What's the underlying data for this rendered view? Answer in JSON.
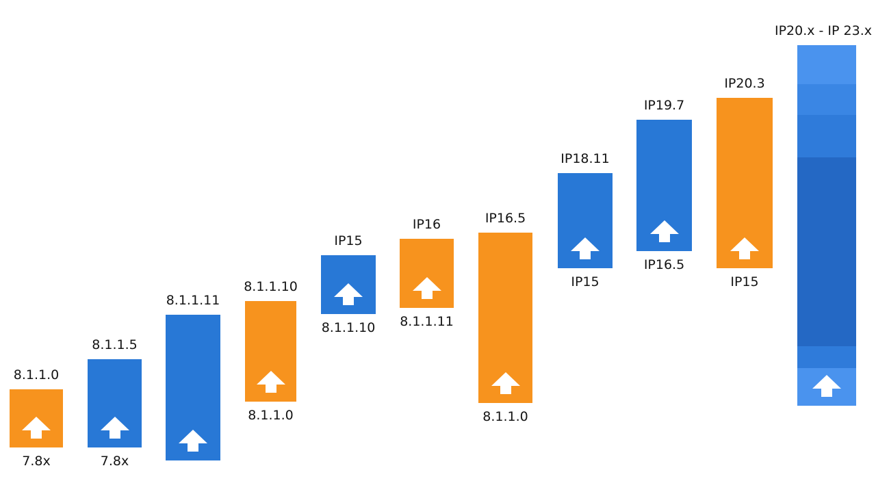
{
  "colors": {
    "blue": "#2878d6",
    "orange": "#f7931e",
    "arrow": "#ffffff",
    "text": "#141414"
  },
  "upgrades": [
    {
      "from": "7.8x",
      "to": "8.1.1.0",
      "color": "orange"
    },
    {
      "from": "7.8x",
      "to": "8.1.1.5",
      "color": "blue"
    },
    {
      "from": "",
      "to": "8.1.1.11",
      "color": "blue"
    },
    {
      "from": "8.1.1.0",
      "to": "8.1.1.10",
      "color": "orange"
    },
    {
      "from": "8.1.1.10",
      "to": "IP15",
      "color": "blue"
    },
    {
      "from": "8.1.1.11",
      "to": "IP16",
      "color": "orange"
    },
    {
      "from": "8.1.1.0",
      "to": "IP16.5",
      "color": "orange"
    },
    {
      "from": "IP15",
      "to": "IP18.11",
      "color": "blue"
    },
    {
      "from": "IP16.5",
      "to": "IP19.7",
      "color": "blue"
    },
    {
      "from": "IP15",
      "to": "IP20.3",
      "color": "orange"
    },
    {
      "from": "",
      "to": "IP20.x - IP 23.x",
      "color": "blue"
    }
  ]
}
